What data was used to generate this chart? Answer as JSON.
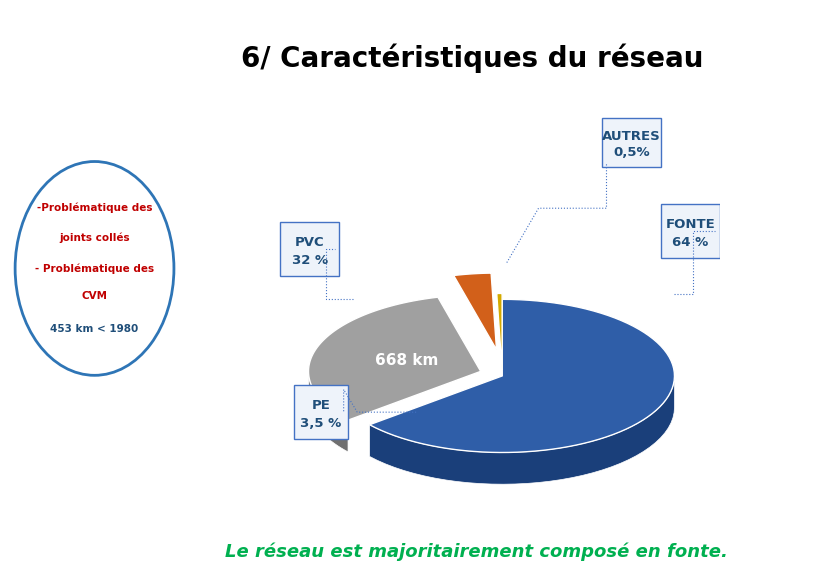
{
  "title": "6/ Caractéristiques du réseau",
  "title_bg": "#FFFF00",
  "title_color": "#000000",
  "title_fontsize": 20,
  "bg_color": "#FFFFFF",
  "slices": [
    64.0,
    32.0,
    3.5,
    0.5
  ],
  "slice_names": [
    "FONTE",
    "PVC",
    "PE",
    "AUTRES"
  ],
  "slice_pcts": [
    "64 %",
    "32 %",
    "3,5 %",
    "0,5%"
  ],
  "colors_top": [
    "#2F5EA8",
    "#A0A0A0",
    "#D2601A",
    "#D4AA00"
  ],
  "colors_side": [
    "#1A3F7A",
    "#707070",
    "#9B3F0A",
    "#A07000"
  ],
  "explode": [
    0.0,
    0.1,
    0.18,
    0.04
  ],
  "center_label": "668 km",
  "center_label_color": "#FFFFFF",
  "circle_text_color1": "#C00000",
  "circle_text_color2": "#1F4E79",
  "circle_border": "#2E75B6",
  "label_box_color": "#E8F0F8",
  "label_text_color": "#1F4E79",
  "connector_color": "#4472C4",
  "footer_text": "Le réseau est majoritairement composé en fonte.",
  "footer_color": "#00B050",
  "footer_fontsize": 13
}
